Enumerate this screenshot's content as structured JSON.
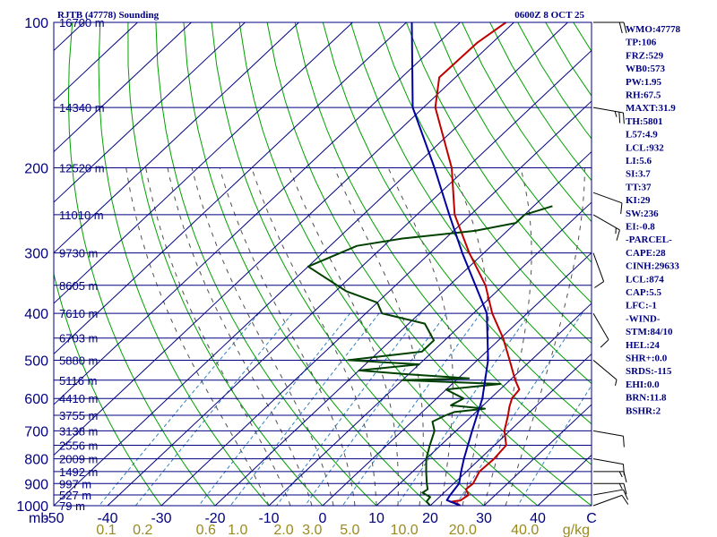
{
  "chart_data": {
    "type": "line",
    "title": "RJTB (47778) Sounding",
    "time": "0600Z  8 OCT 25",
    "x_axis_label": "C",
    "pressure_unit": "mb",
    "mixing_ratio_unit": "g/kg",
    "x_ticks": [
      "-50",
      "-40",
      "-30",
      "-20",
      "-10",
      "0",
      "10",
      "20",
      "30",
      "40"
    ],
    "x_tick_values": [
      -50,
      -40,
      -30,
      -20,
      -10,
      0,
      10,
      20,
      30,
      40
    ],
    "xlim": [
      -50,
      50
    ],
    "pressure_levels": [
      100,
      150,
      200,
      250,
      300,
      350,
      400,
      450,
      500,
      550,
      600,
      650,
      700,
      750,
      800,
      850,
      900,
      950,
      1000
    ],
    "pressure_tick_labels": [
      {
        "p": 100,
        "label": "100"
      },
      {
        "p": 200,
        "label": "200"
      },
      {
        "p": 300,
        "label": "300"
      },
      {
        "p": 400,
        "label": "400"
      },
      {
        "p": 500,
        "label": "500"
      },
      {
        "p": 600,
        "label": "600"
      },
      {
        "p": 700,
        "label": "700"
      },
      {
        "p": 800,
        "label": "800"
      },
      {
        "p": 900,
        "label": "900"
      },
      {
        "p": 1000,
        "label": "1000"
      }
    ],
    "height_labels": [
      {
        "p": 100,
        "label": "16700 m"
      },
      {
        "p": 150,
        "label": "14340 m"
      },
      {
        "p": 200,
        "label": "12520 m"
      },
      {
        "p": 250,
        "label": "11010 m"
      },
      {
        "p": 300,
        "label": "9730 m"
      },
      {
        "p": 350,
        "label": "8605 m"
      },
      {
        "p": 400,
        "label": "7610 m"
      },
      {
        "p": 450,
        "label": "6703 m"
      },
      {
        "p": 500,
        "label": "5880 m"
      },
      {
        "p": 550,
        "label": "5116 m"
      },
      {
        "p": 600,
        "label": "4410 m"
      },
      {
        "p": 650,
        "label": "3755 m"
      },
      {
        "p": 700,
        "label": "3138 m"
      },
      {
        "p": 750,
        "label": "2556 m"
      },
      {
        "p": 800,
        "label": "2009 m"
      },
      {
        "p": 850,
        "label": "1492 m"
      },
      {
        "p": 900,
        "label": "997 m"
      },
      {
        "p": 950,
        "label": "527 m"
      },
      {
        "p": 1000,
        "label": "79 m"
      }
    ],
    "mixing_ratio_labels": [
      "0.1",
      "0.2",
      "0.6",
      "1.0",
      "2.0",
      "3.0",
      "5.0",
      "10.0",
      "20.0",
      "40.0"
    ],
    "mixing_ratio_values": [
      0.1,
      0.2,
      0.6,
      1.0,
      2.0,
      3.0,
      5.0,
      10.0,
      20.0,
      40.0
    ],
    "series": [
      {
        "name": "temperature",
        "color": "#c00000",
        "points": [
          [
            1000,
            25.6
          ],
          [
            990,
            24.6
          ],
          [
            982,
            23.0
          ],
          [
            975,
            24.6
          ],
          [
            950,
            25.0
          ],
          [
            925,
            23.4
          ],
          [
            900,
            23.6
          ],
          [
            850,
            22.4
          ],
          [
            800,
            22.6
          ],
          [
            750,
            22.2
          ],
          [
            700,
            19.0
          ],
          [
            650,
            16.6
          ],
          [
            625,
            15.2
          ],
          [
            600,
            14.0
          ],
          [
            575,
            13.6
          ],
          [
            550,
            11.0
          ],
          [
            500,
            6.0
          ],
          [
            450,
            0.4
          ],
          [
            400,
            -6.5
          ],
          [
            350,
            -13.3
          ],
          [
            300,
            -22.7
          ],
          [
            250,
            -33.0
          ],
          [
            200,
            -42.8
          ],
          [
            150,
            -57.8
          ],
          [
            130,
            -63.0
          ],
          [
            110,
            -62.8
          ],
          [
            100,
            -61.5
          ]
        ]
      },
      {
        "name": "dewpoint",
        "color": "#004000",
        "points": [
          [
            1000,
            20.0
          ],
          [
            980,
            18.5
          ],
          [
            960,
            18.3
          ],
          [
            940,
            16.0
          ],
          [
            925,
            16.3
          ],
          [
            900,
            15.0
          ],
          [
            850,
            12.5
          ],
          [
            800,
            10.0
          ],
          [
            750,
            8.0
          ],
          [
            700,
            6.0
          ],
          [
            670,
            3.8
          ],
          [
            650,
            5.0
          ],
          [
            640,
            6.0
          ],
          [
            630,
            11.0
          ],
          [
            620,
            4.0
          ],
          [
            600,
            5.0
          ],
          [
            575,
            0.0
          ],
          [
            560,
            9.0
          ],
          [
            550,
            -10.0
          ],
          [
            545,
            2.0
          ],
          [
            535,
            -10.0
          ],
          [
            525,
            -20.0
          ],
          [
            510,
            -10.0
          ],
          [
            500,
            -24.0
          ],
          [
            480,
            -12.0
          ],
          [
            455,
            -12.0
          ],
          [
            420,
            -17.0
          ],
          [
            400,
            -27.0
          ],
          [
            380,
            -30.0
          ],
          [
            360,
            -38.0
          ],
          [
            320,
            -50.0
          ],
          [
            290,
            -45.0
          ],
          [
            280,
            -38.0
          ],
          [
            270,
            -26.0
          ],
          [
            260,
            -20.0
          ],
          [
            250,
            -20.0
          ],
          [
            240,
            -16.5
          ]
        ]
      },
      {
        "name": "parcel",
        "color": "#0000a0",
        "points": [
          [
            1000,
            25.6
          ],
          [
            974,
            22.0
          ],
          [
            950,
            21.6
          ],
          [
            900,
            21.0
          ],
          [
            850,
            19.0
          ],
          [
            800,
            17.0
          ],
          [
            700,
            13.0
          ],
          [
            600,
            8.5
          ],
          [
            500,
            2.0
          ],
          [
            400,
            -7.5
          ],
          [
            300,
            -24.0
          ],
          [
            250,
            -34.0
          ],
          [
            200,
            -46.0
          ],
          [
            150,
            -62.0
          ],
          [
            100,
            -79.0
          ]
        ]
      }
    ],
    "wind_barbs": [
      {
        "p": 1000,
        "dir": 70,
        "kt": 10
      },
      {
        "p": 950,
        "dir": 80,
        "kt": 10
      },
      {
        "p": 900,
        "dir": 90,
        "kt": 15
      },
      {
        "p": 850,
        "dir": 90,
        "kt": 15
      },
      {
        "p": 800,
        "dir": 100,
        "kt": 10
      },
      {
        "p": 700,
        "dir": 100,
        "kt": 10
      },
      {
        "p": 500,
        "dir": 130,
        "kt": 5
      },
      {
        "p": 400,
        "dir": 150,
        "kt": 10
      },
      {
        "p": 300,
        "dir": 160,
        "kt": 10
      },
      {
        "p": 250,
        "dir": 120,
        "kt": 15
      },
      {
        "p": 225,
        "dir": 110,
        "kt": 10
      },
      {
        "p": 150,
        "dir": 100,
        "kt": 25
      },
      {
        "p": 100,
        "dir": 90,
        "kt": 20
      }
    ]
  },
  "indices": [
    "WMO:47778",
    "TP:106",
    "FRZ:529",
    "WB0:573",
    "PW:1.95",
    "RH:67.5",
    "MAXT:31.9",
    "TH:5801",
    "L57:4.9",
    "LCL:932",
    "LI:5.6",
    "SI:3.7",
    "TT:37",
    "KI:29",
    "SW:236",
    "EI:-0.8",
    "-PARCEL-",
    "CAPE:28",
    "CINH:29633",
    "LCL:874",
    "CAP:5.5",
    "LFC:-1",
    "-WIND-",
    "STM:84/10",
    "HEL:24",
    "SHR+:0.0",
    "SRDS:-115",
    "EHI:0.0",
    "BRN:11.8",
    "BSHR:2"
  ],
  "colors": {
    "frame": "#000080",
    "isobar": "#000080",
    "isotherm": "#000080",
    "dry_adiabat": "#00a000",
    "moist_adiabat": "#505050",
    "mixing_ratio": "#3080c0",
    "temperature": "#c00000",
    "dewpoint": "#004000",
    "parcel": "#0000a0",
    "mixing_label": "#9a8a20"
  }
}
